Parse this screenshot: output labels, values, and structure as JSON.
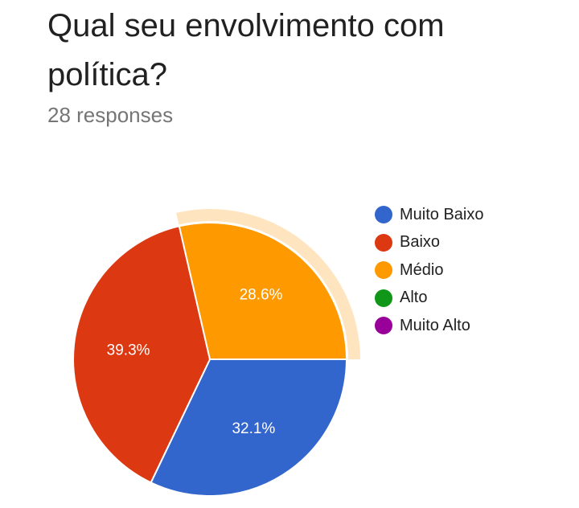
{
  "chart": {
    "title": "Qual seu envolvimento com política?",
    "subtitle": "28 responses"
  },
  "chart_data": {
    "type": "pie",
    "title": "Qual seu envolvimento com política?",
    "subtitle": "28 responses",
    "legend_position": "right",
    "highlighted_slice": "Médio",
    "slices": [
      {
        "label": "Muito Baixo",
        "value": 32.1,
        "display": "32.1%",
        "color": "#3366cc"
      },
      {
        "label": "Baixo",
        "value": 39.3,
        "display": "39.3%",
        "color": "#dc3912"
      },
      {
        "label": "Médio",
        "value": 28.6,
        "display": "28.6%",
        "color": "#ff9900"
      },
      {
        "label": "Alto",
        "value": 0,
        "display": "",
        "color": "#109618"
      },
      {
        "label": "Muito Alto",
        "value": 0,
        "display": "",
        "color": "#990099"
      }
    ]
  }
}
